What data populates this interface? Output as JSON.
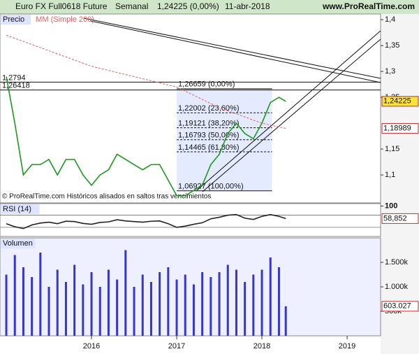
{
  "header": {
    "instrument": "Euro FX Full0618 Future",
    "period": "Semanal",
    "quote": "1,24225 (0,00%)",
    "date": "11-abr-2018",
    "site": "www.ProRealTime.com"
  },
  "chart_data": [
    {
      "type": "line",
      "title": "Precio",
      "note": "© ProRealTime.com  Históricos alisados en saltos tras vencimientos",
      "xlim": [
        2014.926,
        2019.393
      ],
      "ylim": [
        1.046,
        1.411
      ],
      "yticks": [
        {
          "value": 1.4,
          "label": "1,4"
        },
        {
          "value": 1.35,
          "label": "1,35"
        },
        {
          "value": 1.3,
          "label": "1,3"
        },
        {
          "value": 1.25,
          "label": "1,25"
        },
        {
          "value": 1.15,
          "label": "1,15"
        },
        {
          "value": 1.1,
          "label": "1,1"
        }
      ],
      "series": [
        {
          "name": "Euro FX Full0618 Future",
          "color": "#1a9a1a",
          "x": [
            2015.0,
            2015.1,
            2015.2,
            2015.3,
            2015.4,
            2015.5,
            2015.6,
            2015.7,
            2015.8,
            2015.9,
            2016.0,
            2016.1,
            2016.2,
            2016.3,
            2016.4,
            2016.5,
            2016.6,
            2016.7,
            2016.8,
            2016.9,
            2017.0,
            2017.1,
            2017.2,
            2017.3,
            2017.4,
            2017.5,
            2017.6,
            2017.7,
            2017.8,
            2017.9,
            2018.0,
            2018.1,
            2018.2,
            2018.28
          ],
          "values": [
            1.29,
            1.2,
            1.1,
            1.12,
            1.12,
            1.13,
            1.1,
            1.13,
            1.13,
            1.1,
            1.08,
            1.1,
            1.11,
            1.14,
            1.13,
            1.12,
            1.11,
            1.12,
            1.12,
            1.09,
            1.06,
            1.06,
            1.07,
            1.08,
            1.12,
            1.14,
            1.18,
            1.2,
            1.18,
            1.17,
            1.2,
            1.24,
            1.25,
            1.24225
          ],
          "last_label": "1,24225"
        },
        {
          "name": "MM (Simple 200)",
          "color": "#e06060",
          "x": [
            2015.0,
            2015.5,
            2016.0,
            2016.5,
            2017.0,
            2017.5,
            2018.0,
            2018.28
          ],
          "values": [
            1.37,
            1.34,
            1.31,
            1.29,
            1.27,
            1.23,
            1.2,
            1.18989
          ],
          "last_label": "1,18989"
        }
      ],
      "levels": [
        {
          "value": 1.2794,
          "label": "1,2794"
        },
        {
          "value": 1.26418,
          "label": "1,26418"
        }
      ],
      "fib_x": [
        2017.0,
        2018.12
      ],
      "fibonacci": [
        {
          "value": 1.26659,
          "label": "1,26659 (0,00%)"
        },
        {
          "value": 1.22002,
          "label": "1,22002 (23,60%)"
        },
        {
          "value": 1.19121,
          "label": "1,19121 (38,20%)"
        },
        {
          "value": 1.16793,
          "label": "1,16793 (50,00%)"
        },
        {
          "value": 1.14465,
          "label": "1,14465 (61,80%)"
        },
        {
          "value": 1.06927,
          "label": "1,06927 (100,00%)"
        }
      ]
    },
    {
      "type": "line",
      "title": "RSI (14)",
      "xlim": [
        2014.926,
        2019.393
      ],
      "ylim": [
        0,
        108
      ],
      "yticks": [
        100
      ],
      "levels": [
        70,
        30
      ],
      "series": [
        {
          "name": "RSI (14)",
          "color": "#222222",
          "x": [
            2015.0,
            2015.1,
            2015.2,
            2015.3,
            2015.4,
            2015.5,
            2015.6,
            2015.7,
            2015.8,
            2015.9,
            2016.0,
            2016.1,
            2016.2,
            2016.3,
            2016.4,
            2016.5,
            2016.6,
            2016.7,
            2016.8,
            2016.9,
            2017.0,
            2017.1,
            2017.2,
            2017.3,
            2017.4,
            2017.5,
            2017.6,
            2017.7,
            2017.8,
            2017.9,
            2018.0,
            2018.1,
            2018.2,
            2018.28
          ],
          "values": [
            42,
            32,
            26,
            38,
            44,
            47,
            42,
            50,
            49,
            43,
            40,
            46,
            48,
            55,
            51,
            49,
            47,
            50,
            51,
            42,
            30,
            34,
            40,
            45,
            58,
            63,
            70,
            72,
            60,
            56,
            66,
            72,
            66,
            58.852
          ],
          "last_label": "58,852"
        }
      ]
    },
    {
      "type": "bar",
      "title": "Volumen",
      "xlim": [
        2014.926,
        2019.393
      ],
      "ylim": [
        0,
        2000
      ],
      "yticks": [
        {
          "value": 1500,
          "label": "1.500k"
        },
        {
          "value": 1000,
          "label": "1.000k"
        },
        {
          "value": 500,
          "label": "500k"
        }
      ],
      "xticks": [
        2016,
        2017,
        2018,
        2019
      ],
      "color": "#3636c8",
      "x": [
        2015.0,
        2015.1,
        2015.2,
        2015.3,
        2015.4,
        2015.5,
        2015.6,
        2015.7,
        2015.8,
        2015.9,
        2016.0,
        2016.1,
        2016.2,
        2016.3,
        2016.4,
        2016.5,
        2016.6,
        2016.7,
        2016.8,
        2016.9,
        2017.0,
        2017.1,
        2017.2,
        2017.3,
        2017.4,
        2017.5,
        2017.6,
        2017.7,
        2017.8,
        2017.9,
        2018.0,
        2018.1,
        2018.2,
        2018.28
      ],
      "values": [
        1250,
        1650,
        1400,
        1200,
        1700,
        1000,
        1350,
        1100,
        1450,
        1050,
        1300,
        1000,
        1350,
        1150,
        1750,
        1000,
        1250,
        1100,
        1300,
        1400,
        1150,
        1250,
        1050,
        1300,
        1200,
        1300,
        1450,
        1350,
        1100,
        1250,
        1350,
        1600,
        1400,
        603.027
      ],
      "last_label": "603.027"
    }
  ]
}
